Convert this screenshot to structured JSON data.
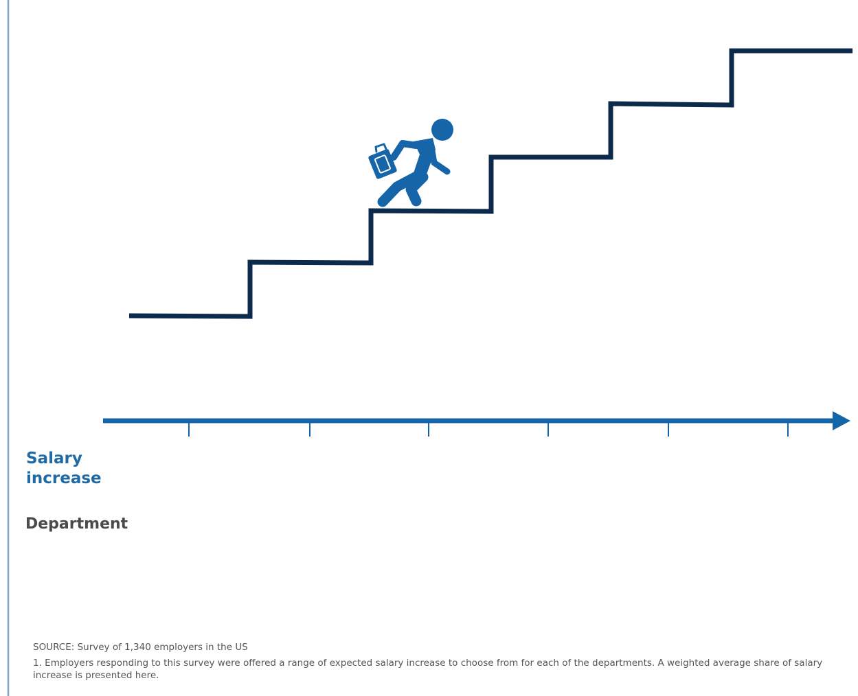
{
  "colors": {
    "left_rule": "#7ea6c8",
    "stairs": "#0c2a4c",
    "axis": "#1464a8",
    "figure": "#1565a8",
    "salary_label": "#1f6aa5",
    "department_label": "#4a4a4a",
    "footnote": "#555555"
  },
  "labels": {
    "salary_increase": "Salary increase",
    "department": "Department"
  },
  "footnotes": {
    "source": "SOURCE: Survey of 1,340 employers in the US",
    "note_1": "1. Employers responding to this survey were offered a range of expected salary increase to choose from for each of the departments. A weighted average share of salary increase is presented here."
  },
  "icons": {
    "climber": "businessman-with-briefcase-climbing-icon",
    "axis_arrow": "arrow-right-icon"
  }
}
